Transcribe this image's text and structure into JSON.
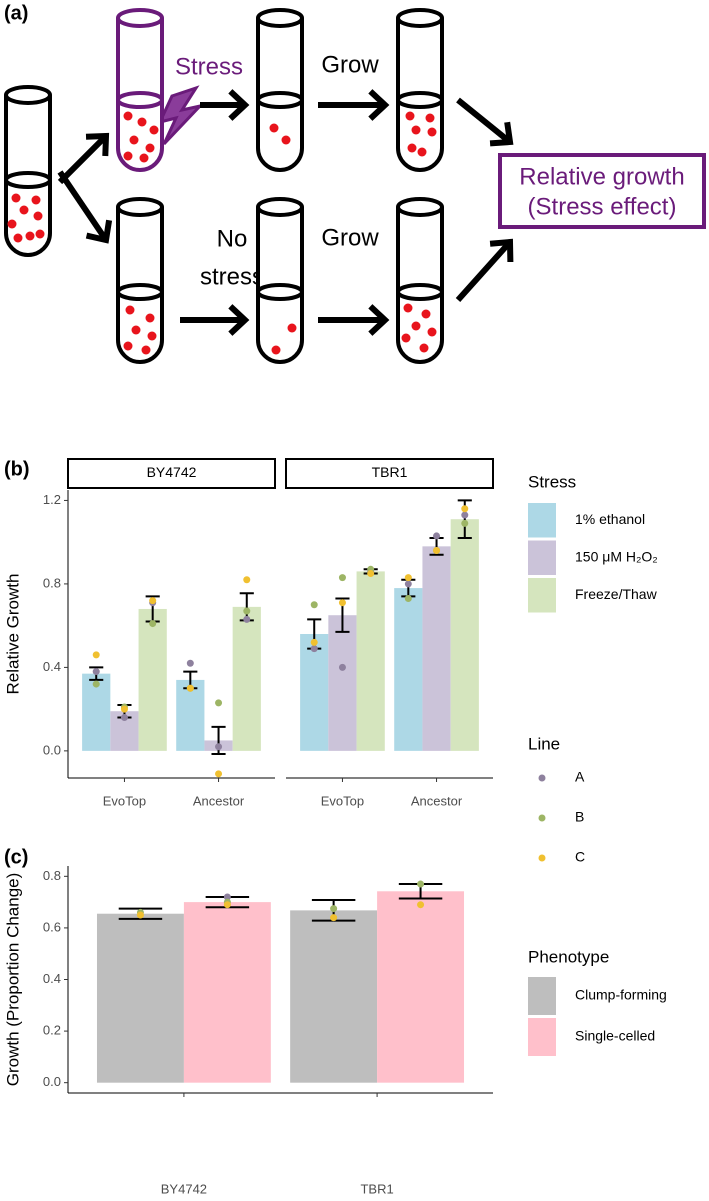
{
  "panel_labels": [
    "(a)",
    "(b)",
    "(c)"
  ],
  "diagram": {
    "stress": "Stress",
    "grow_top": "Grow",
    "no_stress": [
      "No",
      "stress"
    ],
    "grow_bottom": "Grow",
    "result": [
      "Relative growth",
      "(Stress effect)"
    ]
  },
  "chart_data": [
    {
      "type": "bar",
      "facets": [
        "BY4742",
        "TBR1"
      ],
      "categories": [
        "EvoTop",
        "Ancestor"
      ],
      "ylabel": "Relative Growth",
      "ylim": [
        -0.13,
        1.25
      ],
      "yticks": [
        {
          "value": 0,
          "label": "0.0"
        },
        0.4,
        0.8,
        1.2
      ],
      "legend_title": "Stress",
      "series": [
        {
          "name": "1% ethanol",
          "color": "#add8e6",
          "values": [
            [
              0.37,
              0.34
            ],
            [
              0.56,
              0.78
            ]
          ],
          "errors": [
            [
              0.03,
              0.04
            ],
            [
              0.07,
              0.04
            ]
          ]
        },
        {
          "name": "150 μM H₂O₂",
          "color": "#cbc3d9",
          "values": [
            [
              0.19,
              0.05
            ],
            [
              0.65,
              0.98
            ]
          ],
          "errors": [
            [
              0.03,
              0.065
            ],
            [
              0.08,
              0.04
            ]
          ]
        },
        {
          "name": "Freeze/Thaw",
          "color": "#d5e5be",
          "values": [
            [
              0.68,
              0.69
            ],
            [
              0.86,
              1.11
            ]
          ],
          "errors": [
            [
              0.06,
              0.065
            ],
            [
              0.01,
              0.09
            ]
          ]
        }
      ],
      "points": {
        "legend_title": "Line",
        "series": [
          {
            "name": "A",
            "color": "#8e819e",
            "values": [
              [
                [
                  0.38,
                  0.16,
                  0.71
                ],
                [
                  0.42,
                  0.02,
                  0.63
                ]
              ],
              [
                [
                  0.49,
                  0.4,
                  0.86
                ],
                [
                  0.8,
                  1.03,
                  1.13
                ]
              ]
            ]
          },
          {
            "name": "B",
            "color": "#9db565",
            "values": [
              [
                [
                  0.32,
                  0.21,
                  0.61
                ],
                [
                  0.3,
                  0.23,
                  0.67
                ]
              ],
              [
                [
                  0.7,
                  0.83,
                  0.87
                ],
                [
                  0.73,
                  0.96,
                  1.09
                ]
              ]
            ]
          },
          {
            "name": "C",
            "color": "#f0c030",
            "values": [
              [
                [
                  0.46,
                  0.2,
                  0.72
                ],
                [
                  0.3,
                  -0.11,
                  0.82
                ]
              ],
              [
                [
                  0.52,
                  0.71,
                  0.85
                ],
                [
                  0.83,
                  0.96,
                  1.16
                ]
              ]
            ]
          }
        ]
      }
    },
    {
      "type": "bar",
      "categories": [
        "BY4742",
        "TBR1"
      ],
      "ylabel": "Growth (Proportion Change)",
      "ylim": [
        -0.04,
        0.84
      ],
      "yticks": [
        {
          "value": 0,
          "label": "0.0"
        },
        0.2,
        0.4,
        0.6,
        0.8
      ],
      "legend_title": "Phenotype",
      "series": [
        {
          "name": "Clump-forming",
          "color": "#bebebe",
          "values": [
            0.655,
            0.668
          ],
          "errors": [
            0.02,
            0.04
          ]
        },
        {
          "name": "Single-celled",
          "color": "#ffc0cb",
          "values": [
            0.7,
            0.742
          ],
          "errors": [
            0.02,
            0.028
          ]
        }
      ],
      "points": {
        "series": [
          {
            "color": "#8e819e",
            "values": [
              [
                null,
                0.72
              ],
              [
                null,
                null
              ]
            ]
          },
          {
            "color": "#9db565",
            "values": [
              [
                0.66,
                0.7
              ],
              [
                0.675,
                0.77
              ]
            ]
          },
          {
            "color": "#f0c030",
            "values": [
              [
                0.65,
                0.69
              ],
              [
                0.64,
                0.69
              ]
            ]
          }
        ]
      }
    }
  ]
}
